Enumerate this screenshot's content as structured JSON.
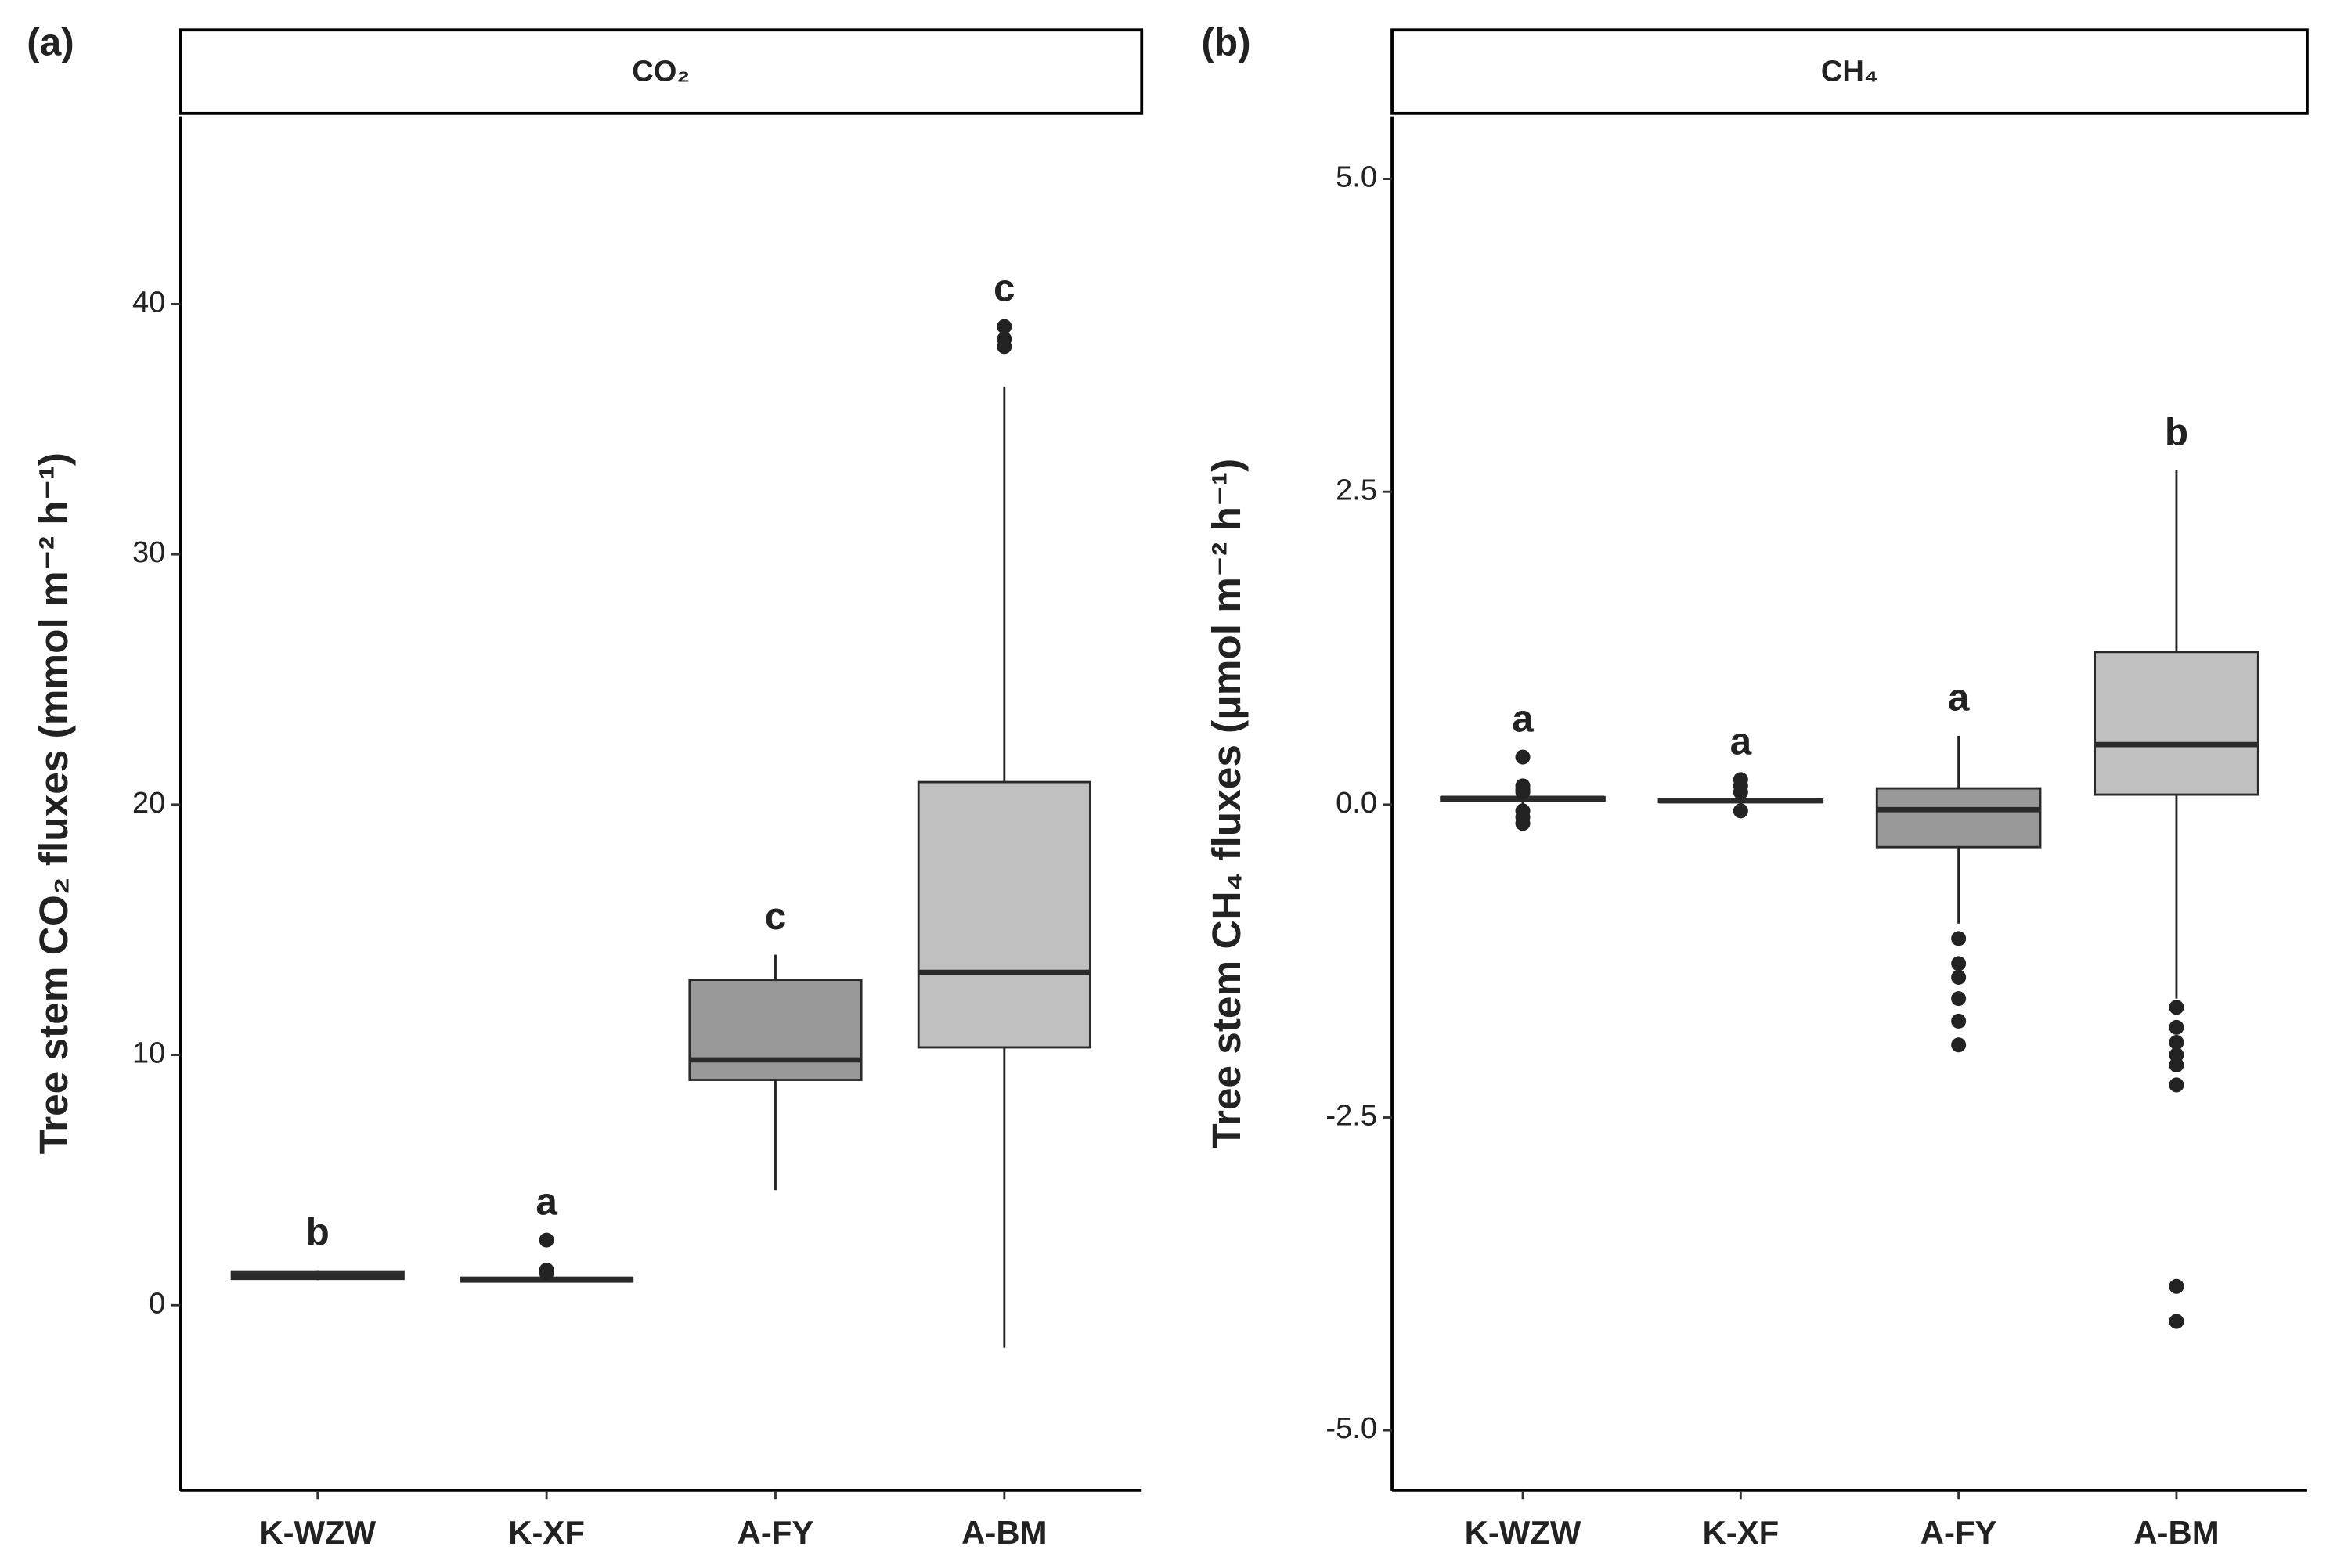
{
  "chart_data": [
    {
      "type": "box",
      "panel_label": "(a)",
      "title": "CO₂",
      "y_label": "Tree stem CO₂ fluxes (mmol m⁻² h⁻¹)",
      "categories": [
        "K-WZW",
        "K-XF",
        "A-FY",
        "A-BM"
      ],
      "colors": [
        "#6e6e6e",
        "#7a7a7a",
        "#999999",
        "#c0c0c0"
      ],
      "boxes": [
        {
          "low": 1.0,
          "q1": 1.05,
          "median": 1.2,
          "q3": 1.35,
          "high": 1.4,
          "outliers": [],
          "letter": "b"
        },
        {
          "low": 0.9,
          "q1": 0.95,
          "median": 1.0,
          "q3": 1.1,
          "high": 1.2,
          "outliers": [
            2.6,
            1.4,
            1.3
          ],
          "letter": "a"
        },
        {
          "low": 4.6,
          "q1": 9.0,
          "median": 9.8,
          "q3": 13.0,
          "high": 14.0,
          "outliers": [],
          "letter": "c"
        },
        {
          "low": -1.7,
          "q1": 10.3,
          "median": 13.3,
          "q3": 20.9,
          "high": 36.7,
          "outliers": [
            38.3,
            38.6,
            39.1
          ],
          "letter": "c"
        }
      ],
      "ylim": [
        -7.4,
        47.5
      ],
      "yticks": [
        0,
        10,
        20,
        30,
        40
      ]
    },
    {
      "type": "box",
      "panel_label": "(b)",
      "title": "CH₄",
      "y_label": "Tree stem CH₄ fluxes (μmol m⁻² h⁻¹)",
      "categories": [
        "K-WZW",
        "K-XF",
        "A-FY",
        "A-BM"
      ],
      "colors": [
        "#6e6e6e",
        "#7a7a7a",
        "#999999",
        "#c0c0c0"
      ],
      "boxes": [
        {
          "low": 0.0,
          "q1": 0.03,
          "median": 0.05,
          "q3": 0.06,
          "high": 0.08,
          "outliers": [
            0.38,
            0.15,
            0.12,
            0.1,
            -0.05,
            -0.1,
            -0.15
          ],
          "letter": "a"
        },
        {
          "low": 0.0,
          "q1": 0.02,
          "median": 0.03,
          "q3": 0.04,
          "high": 0.06,
          "outliers": [
            0.2,
            0.15,
            0.1,
            -0.05
          ],
          "letter": "a"
        },
        {
          "low": -0.95,
          "q1": -0.34,
          "median": -0.04,
          "q3": 0.13,
          "high": 0.55,
          "outliers": [
            -1.07,
            -1.27,
            -1.38,
            -1.55,
            -1.73,
            -1.92
          ],
          "letter": "a"
        },
        {
          "low": -1.55,
          "q1": 0.08,
          "median": 0.48,
          "q3": 1.22,
          "high": 2.67,
          "outliers": [
            -1.62,
            -1.78,
            -1.9,
            -2.0,
            -2.08,
            -2.24,
            -3.85,
            -4.13
          ],
          "letter": "b"
        }
      ],
      "ylim": [
        -5.48,
        5.5
      ],
      "yticks": [
        {
          "value": -5,
          "label": "-5.0"
        },
        -2.5,
        {
          "value": 0,
          "label": "0.0"
        },
        2.5,
        {
          "value": 5,
          "label": "5.0"
        }
      ]
    }
  ]
}
